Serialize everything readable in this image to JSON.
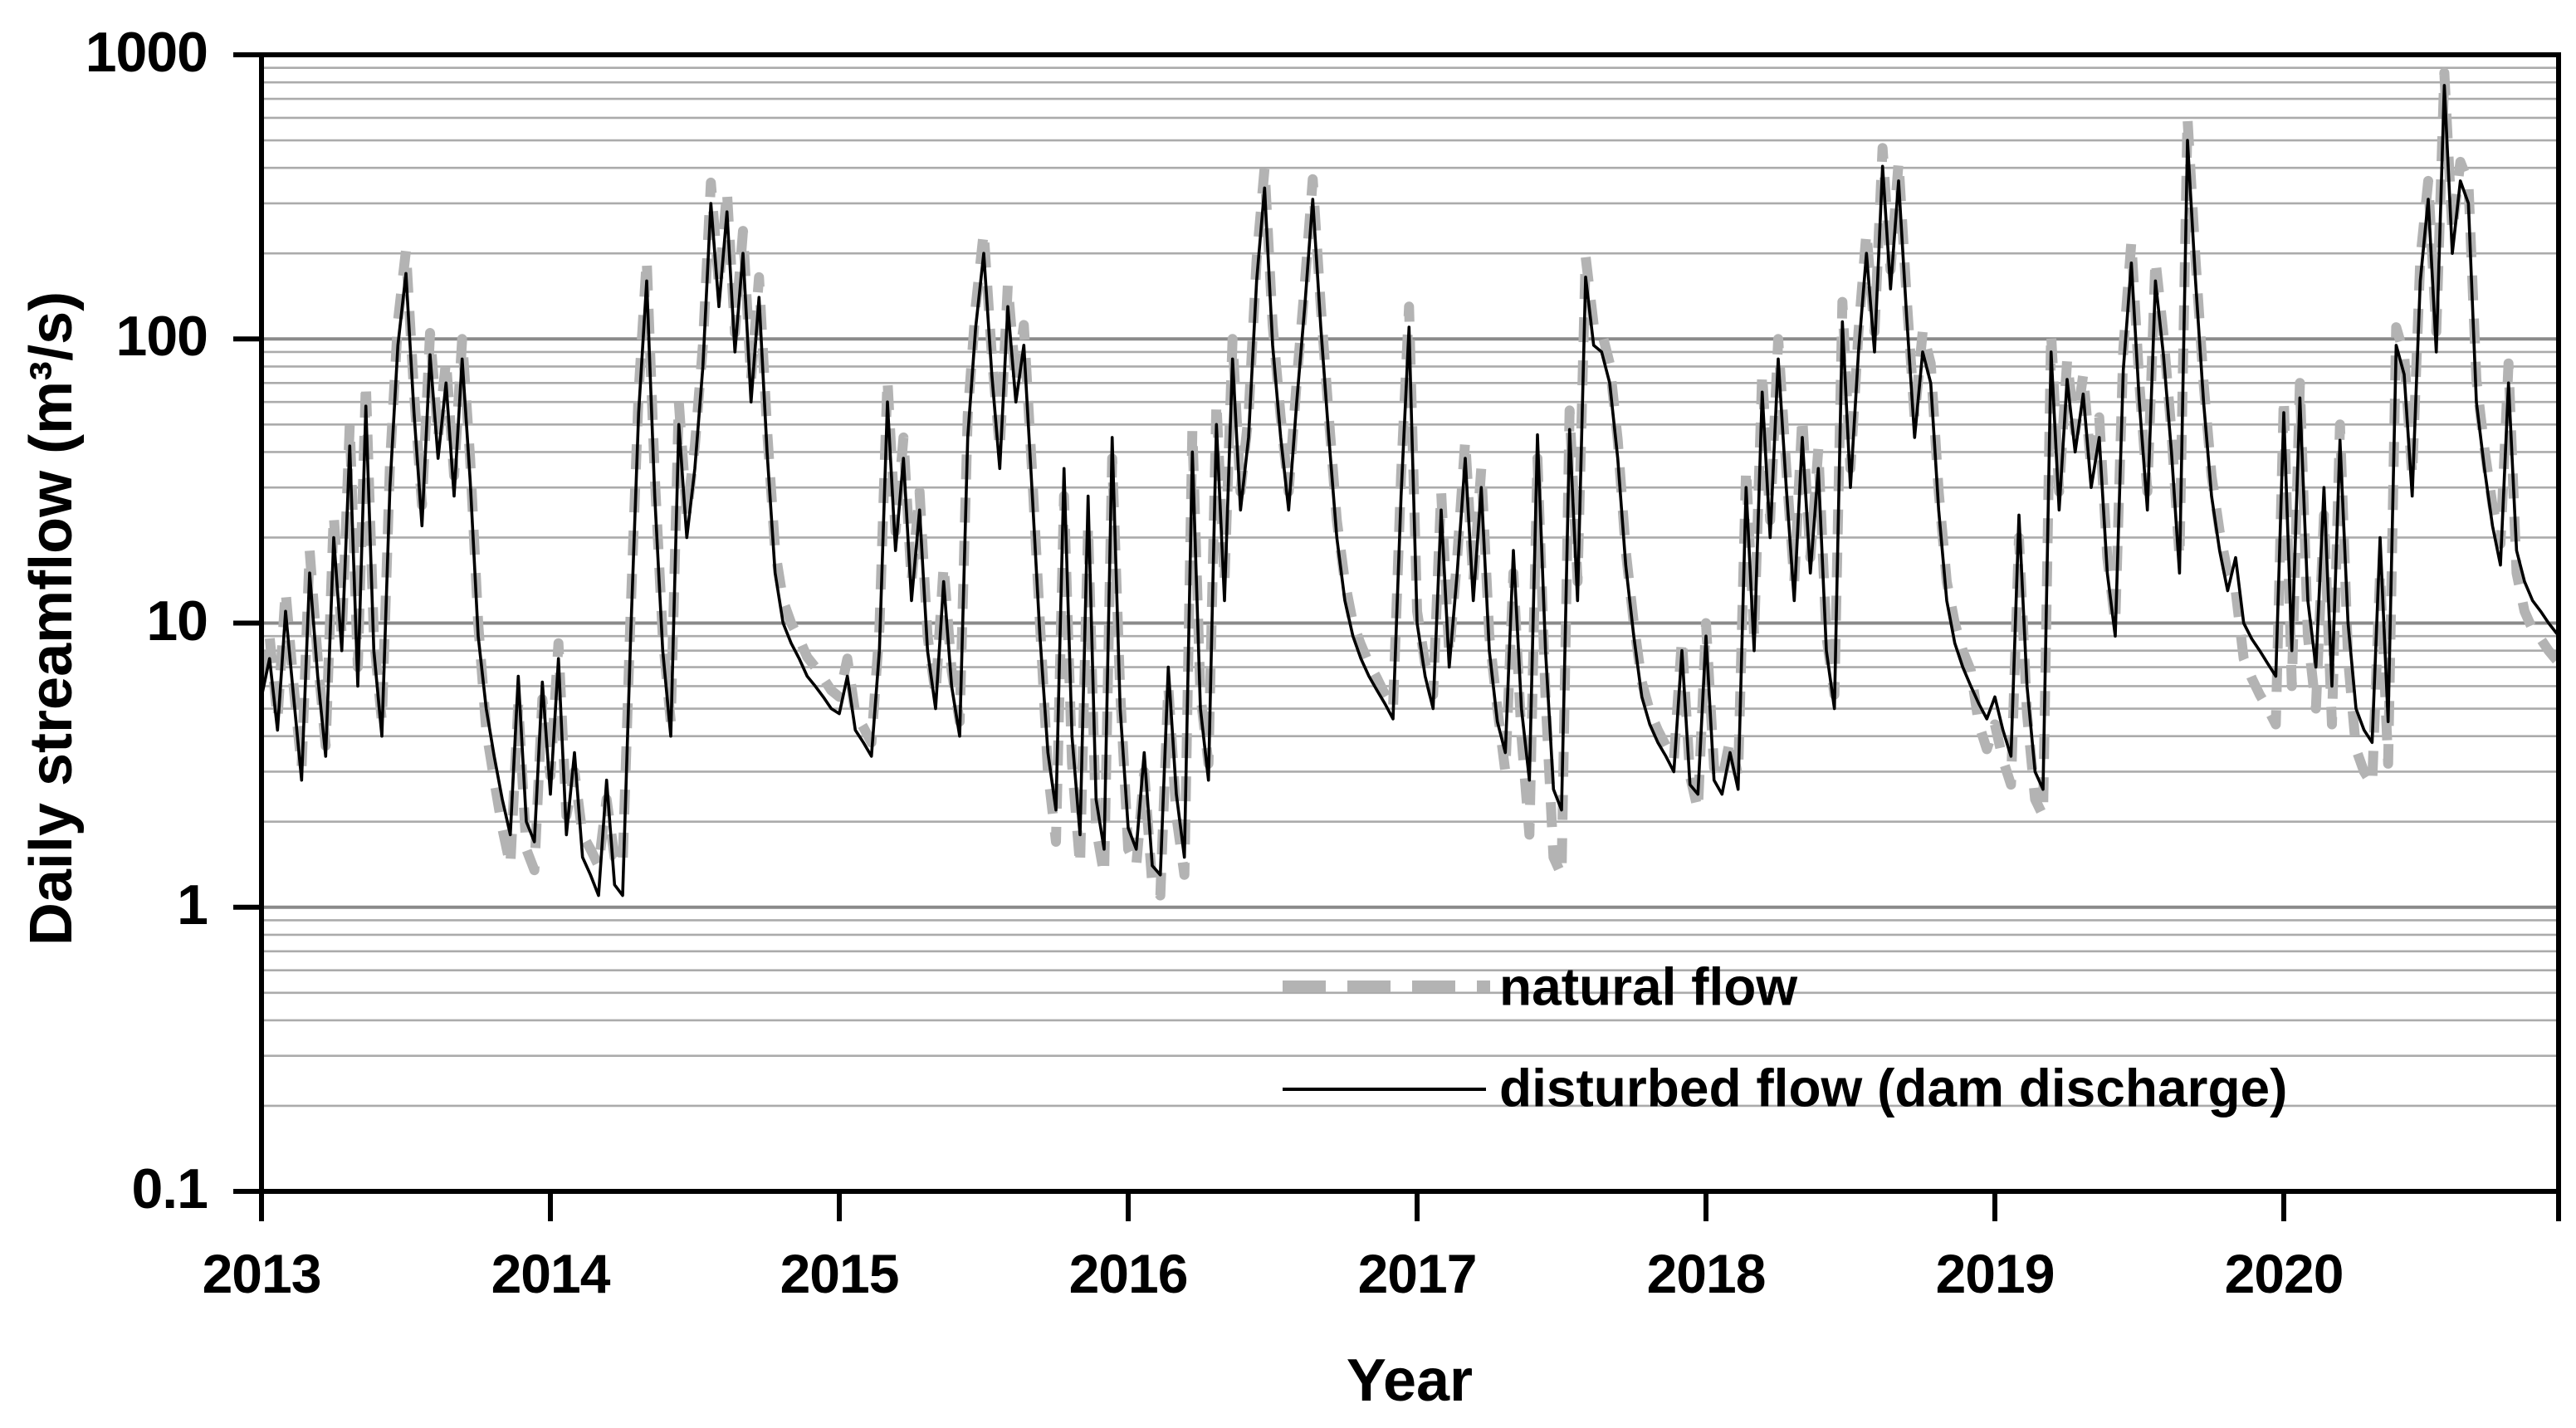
{
  "chart_data": {
    "type": "line",
    "title": "",
    "xlabel": "Year",
    "ylabel": "Daily streamflow (m³/s)",
    "x_axis": {
      "tick_labels": [
        "2013",
        "2014",
        "2015",
        "2016",
        "2017",
        "2018",
        "2019",
        "2020"
      ],
      "tick_values": [
        2013,
        2014,
        2015,
        2016,
        2017,
        2018,
        2019,
        2020
      ],
      "range": [
        2013.0,
        2020.95
      ]
    },
    "y_axis": {
      "scale": "log",
      "tick_labels": [
        "1000",
        "100",
        "10",
        "1",
        "0.1"
      ],
      "tick_values": [
        1000,
        100,
        10,
        1,
        0.1
      ],
      "range": [
        0.1,
        1000
      ],
      "minor_gridlines": "multiples 2-9 of each decade",
      "major_gridline_values": [
        1,
        10,
        100
      ]
    },
    "grid": {
      "horizontal": true,
      "vertical": false,
      "minor_color": "#ababab",
      "major_color": "#8a8a8a"
    },
    "legend": {
      "position": "inside-bottom-center",
      "border": false
    },
    "x_start": 2013.0,
    "x_step_years": 0.027778,
    "points_per_year": 36,
    "series": [
      {
        "name": "natural flow",
        "color": "#b3b3b3",
        "style": "thick-dashed",
        "values_by_year": [
          [
            6.5,
            9,
            4.6,
            13,
            6,
            3.1,
            18,
            7.5,
            3.7,
            24,
            9,
            50,
            7,
            70,
            9,
            4.5,
            36,
            115,
            205,
            65,
            26,
            105,
            45,
            84,
            33,
            100,
            38,
            10,
            4.2,
            2.8,
            1.9,
            1.4,
            5.2,
            1.6,
            1.35,
            5.4
          ],
          [
            2.9,
            8.5,
            2.1,
            3,
            1.8,
            1.6,
            1.4,
            2.4,
            1.5,
            1.4,
            11,
            65,
            190,
            33,
            9,
            4.5,
            60,
            24,
            42,
            95,
            355,
            155,
            330,
            105,
            240,
            72,
            165,
            48,
            18,
            12,
            10,
            8.8,
            7.6,
            7,
            6.4,
            5.8
          ],
          [
            5.5,
            7.5,
            4.8,
            4.3,
            3.8,
            9.5,
            72,
            21,
            45,
            14,
            29,
            9,
            5.6,
            16,
            6.8,
            4.5,
            54,
            130,
            238,
            88,
            41,
            155,
            70,
            112,
            35,
            10,
            3,
            1.7,
            28,
            3.2,
            1.4,
            22,
            1.9,
            1.3,
            38,
            5.8
          ],
          [
            1.6,
            1.4,
            3,
            1.2,
            1.1,
            6,
            2.1,
            1.3,
            48,
            5.6,
            3.2,
            60,
            14,
            100,
            29,
            54,
            190,
            400,
            112,
            53,
            29,
            71,
            155,
            365,
            130,
            53,
            23,
            14,
            10,
            8.4,
            7.2,
            6.4,
            5.6,
            5,
            33,
            130
          ],
          [
            11,
            7.2,
            5.6,
            29,
            7.8,
            17,
            44,
            14,
            35,
            9,
            5,
            3,
            15,
            4,
            1.8,
            38,
            5.5,
            1.5,
            1.3,
            56,
            14,
            195,
            112,
            106,
            82,
            44,
            18,
            10,
            6.2,
            4.9,
            4.2,
            3.7,
            3.3,
            8.8,
            2.9,
            2.2
          ],
          [
            10,
            3.1,
            2.8,
            3.9,
            2.9,
            35,
            9,
            76,
            23,
            100,
            35,
            14,
            53,
            17,
            41,
            9,
            5.6,
            135,
            35,
            106,
            238,
            106,
            470,
            175,
            420,
            140,
            53,
            106,
            82,
            29,
            14,
            10,
            8,
            6.8,
            4.4,
            3.6
          ],
          [
            4.4,
            3.3,
            2.7,
            20,
            4.8,
            2.4,
            2.1,
            105,
            29,
            84,
            47,
            75,
            35,
            53,
            17,
            10,
            92,
            220,
            70,
            29,
            190,
            104,
            47,
            17,
            600,
            190,
            70,
            33,
            21,
            15,
            13,
            7.5,
            6.4,
            5.6,
            5,
            4.4
          ],
          [
            62,
            6,
            70,
            9,
            5,
            24,
            4.4,
            50,
            7.5,
            3.6,
            3,
            2.7,
            15,
            3.2,
            110,
            88,
            33,
            190,
            360,
            106,
            865,
            240,
            420,
            355,
            72,
            41,
            26,
            19,
            82,
            15,
            11,
            9.5,
            8.8,
            8,
            7.4,
            7
          ]
        ]
      },
      {
        "name": "disturbed flow (dam discharge)",
        "color": "#000000",
        "style": "thin-solid",
        "values_by_year": [
          [
            5.5,
            7.5,
            4.2,
            11,
            5.5,
            2.8,
            15,
            6.5,
            3.4,
            20,
            8,
            42,
            6,
            58,
            8,
            4,
            30,
            95,
            170,
            55,
            22,
            88,
            38,
            70,
            28,
            85,
            32,
            9,
            5,
            3.4,
            2.4,
            1.8,
            6.5,
            2.0,
            1.7,
            6.2
          ],
          [
            2.5,
            7.5,
            1.8,
            3.5,
            1.5,
            1.3,
            1.1,
            2.8,
            1.2,
            1.1,
            9,
            55,
            160,
            28,
            8,
            4,
            50,
            20,
            35,
            80,
            300,
            130,
            280,
            90,
            200,
            60,
            140,
            40,
            15,
            10,
            8.5,
            7.5,
            6.5,
            6,
            5.5,
            5
          ],
          [
            4.8,
            6.5,
            4.2,
            3.8,
            3.4,
            8,
            60,
            18,
            38,
            12,
            25,
            8,
            5,
            14,
            6,
            4,
            45,
            110,
            200,
            75,
            35,
            130,
            60,
            95,
            30,
            9,
            3.5,
            2.2,
            35,
            4,
            1.8,
            28,
            2.4,
            1.6,
            45,
            5
          ],
          [
            1.9,
            1.6,
            3.5,
            1.4,
            1.3,
            7,
            2.5,
            1.5,
            40,
            5,
            2.8,
            50,
            12,
            85,
            25,
            45,
            160,
            340,
            95,
            45,
            25,
            60,
            130,
            310,
            110,
            45,
            20,
            12,
            9,
            7.5,
            6.5,
            5.8,
            5.2,
            4.6,
            28,
            110
          ],
          [
            10,
            6.5,
            5,
            25,
            7,
            15,
            38,
            12,
            30,
            8,
            4.5,
            3.5,
            18,
            5,
            2.8,
            46,
            8,
            2.6,
            2.2,
            48,
            12,
            165,
            95,
            90,
            70,
            38,
            16,
            9,
            5.5,
            4.4,
            3.8,
            3.4,
            3,
            8,
            2.7,
            2.5
          ],
          [
            9,
            2.8,
            2.5,
            3.5,
            2.6,
            30,
            8,
            65,
            20,
            85,
            30,
            12,
            45,
            15,
            35,
            8,
            5,
            115,
            30,
            90,
            200,
            90,
            405,
            150,
            360,
            120,
            45,
            90,
            70,
            25,
            12,
            8.5,
            7,
            6,
            5.2,
            4.6
          ],
          [
            5.5,
            4.2,
            3.4,
            24,
            6,
            3,
            2.6,
            90,
            25,
            72,
            40,
            64,
            30,
            45,
            15,
            9,
            78,
            185,
            60,
            25,
            160,
            88,
            40,
            15,
            500,
            160,
            60,
            28,
            18,
            13,
            17,
            10,
            8.8,
            8,
            7.2,
            6.5
          ],
          [
            55,
            8,
            62,
            12,
            7,
            30,
            6,
            44,
            10,
            5,
            4.2,
            3.8,
            20,
            4.5,
            95,
            75,
            28,
            160,
            310,
            90,
            780,
            200,
            360,
            300,
            60,
            35,
            22,
            16,
            70,
            18,
            14,
            12,
            11,
            10,
            9.2,
            8.6
          ]
        ]
      }
    ]
  },
  "colors": {
    "background": "#ffffff",
    "axis": "#000000",
    "natural_flow": "#b3b3b3",
    "disturbed_flow": "#000000",
    "minor_grid": "#ababab",
    "major_grid": "#8a8a8a"
  }
}
